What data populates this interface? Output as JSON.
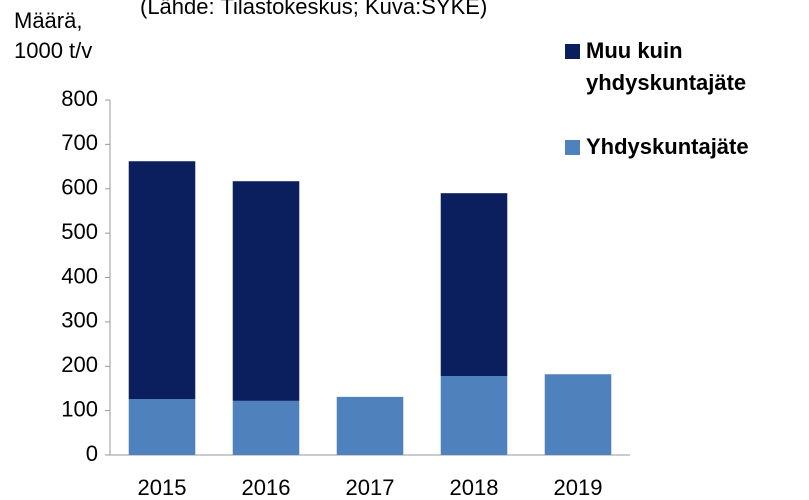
{
  "chart_data": {
    "type": "stacked-bar",
    "subtitle": "(Lähde: Tilastokeskus; Kuva:SYKE)",
    "ylabel": [
      "Määrä,",
      "1000 t/v"
    ],
    "categories": [
      "2015",
      "2016",
      "2017",
      "2018",
      "2019"
    ],
    "series": [
      {
        "name": "Yhdyskuntajäte",
        "color": "#4f81bd",
        "values": [
          126,
          122,
          131,
          178,
          182
        ]
      },
      {
        "name": "Muu kuin yhdyskuntajäte",
        "color": "#0b1f5e",
        "values": [
          536,
          495,
          null,
          412,
          null
        ]
      }
    ],
    "ylim": [
      0,
      800
    ],
    "yticks": [
      0,
      100,
      200,
      300,
      400,
      500,
      600,
      700,
      800
    ]
  }
}
